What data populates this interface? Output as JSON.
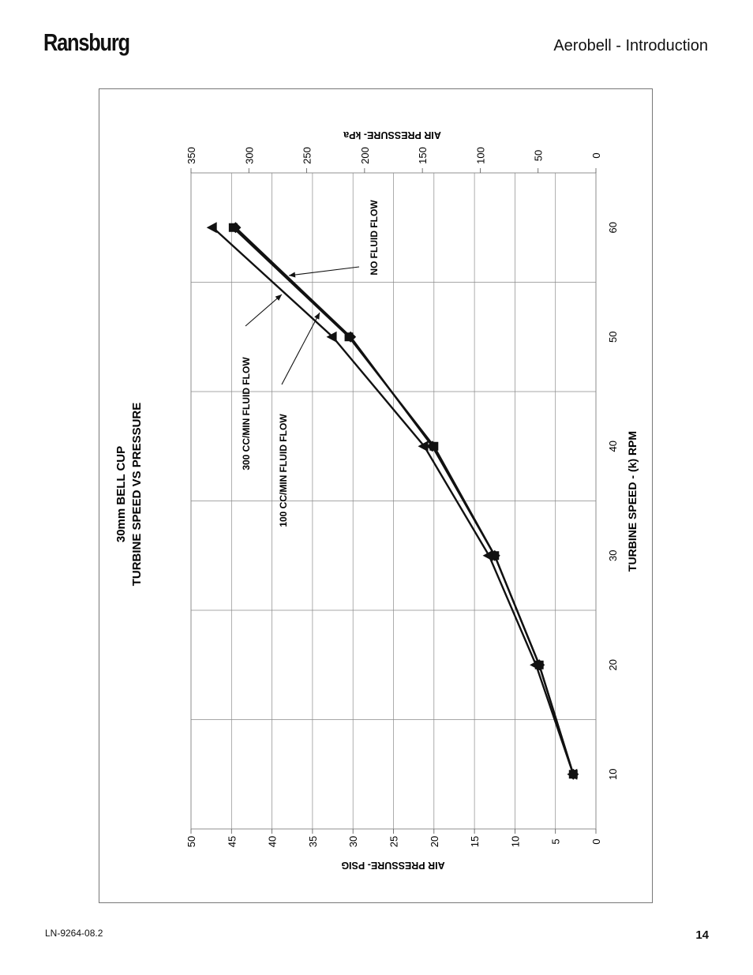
{
  "header": {
    "brand": "Ransburg",
    "section_title": "Aerobell - Introduction"
  },
  "footer": {
    "doc_number": "LN-9264-08.2",
    "page_number": "14"
  },
  "chart_data": {
    "type": "line",
    "orientation": "rotated-90",
    "title_line1": "30mm BELL CUP",
    "title_line2": "TURBINE SPEED VS PRESSURE",
    "xlabel": "TURBINE SPEED - (k) RPM",
    "ylabel": "AIR PRESSURE- PSIG",
    "y2label": "AIR PRESSURE- kPa",
    "xlim": [
      5,
      65
    ],
    "ylim": [
      0,
      50
    ],
    "y2lim": [
      0,
      350
    ],
    "x_ticks": [
      10,
      20,
      30,
      40,
      50,
      60
    ],
    "y_ticks": [
      0,
      5,
      10,
      15,
      20,
      25,
      30,
      35,
      40,
      45,
      50
    ],
    "y2_ticks": [
      0,
      50,
      100,
      150,
      200,
      250,
      300,
      350
    ],
    "grid": true,
    "series": [
      {
        "name": "NO FLUID FLOW",
        "marker": "diamond",
        "x": [
          10,
          20,
          30,
          40,
          50,
          60
        ],
        "y": [
          2.8,
          7.0,
          12.5,
          20.2,
          30.3,
          44.5
        ]
      },
      {
        "name": "100 CC/MIN FLUID FLOW",
        "marker": "square",
        "x": [
          10,
          20,
          30,
          40,
          50,
          60
        ],
        "y": [
          2.8,
          7.0,
          12.5,
          20.0,
          30.5,
          44.8
        ]
      },
      {
        "name": "300 CC/MIN FLUID FLOW",
        "marker": "triangle",
        "x": [
          10,
          20,
          30,
          40,
          50,
          60
        ],
        "y": [
          2.8,
          7.4,
          13.2,
          21.2,
          32.5,
          47.3
        ]
      }
    ],
    "annotations": [
      "NO FLUID FLOW",
      "300 CC/MIN FLUID FLOW",
      "100 CC/MIN FLUID FLOW"
    ]
  }
}
